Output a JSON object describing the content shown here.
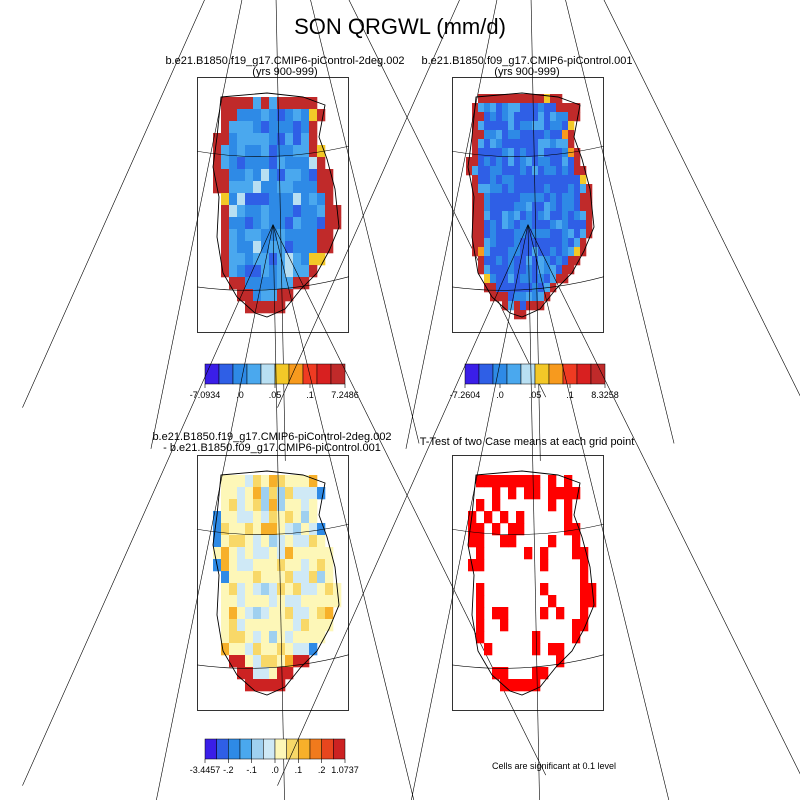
{
  "figure": {
    "title": "SON QRGWL (mm/d)"
  },
  "panels": [
    {
      "id": "p1",
      "title_line1": "b.e21.B1850.f19_g17.CMIP6-piControl-2deg.002",
      "title_line2": "(yrs 900-999)"
    },
    {
      "id": "p2",
      "title_line1": "b.e21.B1850.f09_g17.CMIP6-piControl.001",
      "title_line2": "(yrs 900-999)"
    },
    {
      "id": "p3",
      "title_line1": "b.e21.B1850.f19_g17.CMIP6-piControl-2deg.002",
      "title_line2": "- b.e21.B1850.f09_g17.CMIP6-piControl.001"
    },
    {
      "id": "p4",
      "title_line1": "T-Test of two Case means at each grid point",
      "note": "Cells are significant at 0.1 level"
    }
  ],
  "chart_data": [
    {
      "type": "heatmap",
      "title": "b.e21.B1850.f19_g17.CMIP6-piControl-2deg.002 (yrs 900-999)",
      "colorbar": {
        "colors": [
          "#3a1ee8",
          "#2f5fe6",
          "#2e8ae6",
          "#4aa8ee",
          "#b8dff2",
          "#f3c828",
          "#f79a1e",
          "#ef3b22",
          "#d82020",
          "#c02a2a"
        ],
        "tick_labels": [
          "-7.0934",
          ".0",
          ".05",
          ".1",
          "7.2486"
        ]
      },
      "value_range": [
        -7.0934,
        7.2486
      ]
    },
    {
      "type": "heatmap",
      "title": "b.e21.B1850.f09_g17.CMIP6-piControl.001 (yrs 900-999)",
      "colorbar": {
        "colors": [
          "#3a1ee8",
          "#2f5fe6",
          "#2e8ae6",
          "#4aa8ee",
          "#b8dff2",
          "#f3c828",
          "#f79a1e",
          "#ef3b22",
          "#d82020",
          "#c02a2a"
        ],
        "tick_labels": [
          "-7.2604",
          ".0",
          ".05",
          ".1",
          "8.3258"
        ]
      },
      "value_range": [
        -7.2604,
        8.3258
      ]
    },
    {
      "type": "heatmap",
      "title": "b.e21.B1850.f19_g17.CMIP6-piControl-2deg.002 - b.e21.B1850.f09_g17.CMIP6-piControl.001",
      "colorbar": {
        "colors": [
          "#3a1ee8",
          "#2f5fe6",
          "#2e8ae6",
          "#4aa8ee",
          "#9fd0f0",
          "#cfe9f6",
          "#fdf7b8",
          "#f8d868",
          "#f7b02a",
          "#f17a1c",
          "#e8461e",
          "#cc2222"
        ],
        "tick_labels": [
          "-3.4457",
          "-.2",
          "-.1",
          ".0",
          ".1",
          ".2",
          "1.0737"
        ]
      },
      "value_range": [
        -3.4457,
        1.0737
      ]
    },
    {
      "type": "heatmap",
      "title": "T-Test of two Case means at each grid point",
      "significant_color": "#ff0000",
      "significance_level": 0.1
    }
  ]
}
